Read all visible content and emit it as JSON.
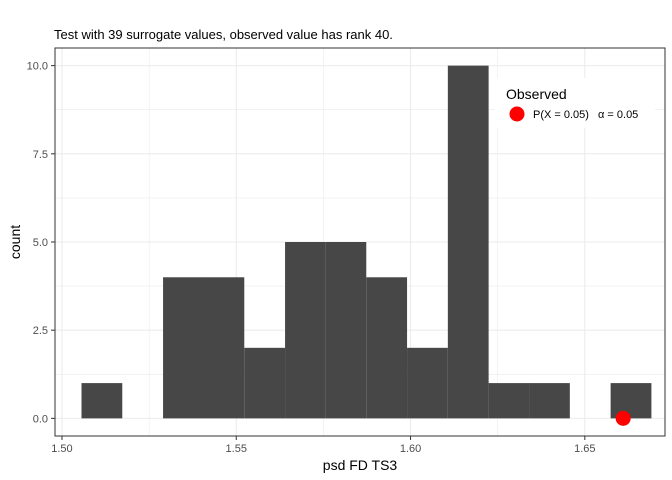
{
  "chart_data": {
    "type": "bar",
    "title": "Test with 39 surrogate values, observed value has rank 40.",
    "xlabel": "psd FD TS3",
    "ylabel": "count",
    "xlim": [
      1.498,
      1.673
    ],
    "ylim": [
      -0.5,
      10.5
    ],
    "x_ticks": [
      1.5,
      1.55,
      1.6,
      1.65
    ],
    "x_tick_labels": [
      "1.50",
      "1.55",
      "1.60",
      "1.65"
    ],
    "y_ticks": [
      0,
      2.5,
      5,
      7.5,
      10
    ],
    "y_tick_labels": [
      "0.0",
      "2.5",
      "5.0",
      "7.5",
      "10.0"
    ],
    "grid": true,
    "bins": [
      {
        "x0": 1.5056,
        "x1": 1.5173,
        "count": 1
      },
      {
        "x0": 1.5173,
        "x1": 1.529,
        "count": 0
      },
      {
        "x0": 1.529,
        "x1": 1.5406,
        "count": 4
      },
      {
        "x0": 1.5406,
        "x1": 1.5523,
        "count": 4
      },
      {
        "x0": 1.5523,
        "x1": 1.564,
        "count": 2
      },
      {
        "x0": 1.564,
        "x1": 1.5757,
        "count": 5
      },
      {
        "x0": 1.5757,
        "x1": 1.5873,
        "count": 5
      },
      {
        "x0": 1.5873,
        "x1": 1.599,
        "count": 4
      },
      {
        "x0": 1.599,
        "x1": 1.6107,
        "count": 2
      },
      {
        "x0": 1.6107,
        "x1": 1.6224,
        "count": 10
      },
      {
        "x0": 1.6224,
        "x1": 1.634,
        "count": 1
      },
      {
        "x0": 1.634,
        "x1": 1.6457,
        "count": 1
      },
      {
        "x0": 1.6457,
        "x1": 1.6574,
        "count": 0
      },
      {
        "x0": 1.6574,
        "x1": 1.6691,
        "count": 1
      }
    ],
    "observed": {
      "x": 1.661,
      "y": 0
    },
    "legend": {
      "title": "Observed",
      "label_main": "P(X = 0.05)",
      "label_alpha": "α = 0.05",
      "placement": "top-right"
    },
    "colors": {
      "bar": "#474747",
      "observed": "#ff0000",
      "grid": "#ebebeb",
      "panel_border": "#333333",
      "background": "#ffffff"
    }
  }
}
